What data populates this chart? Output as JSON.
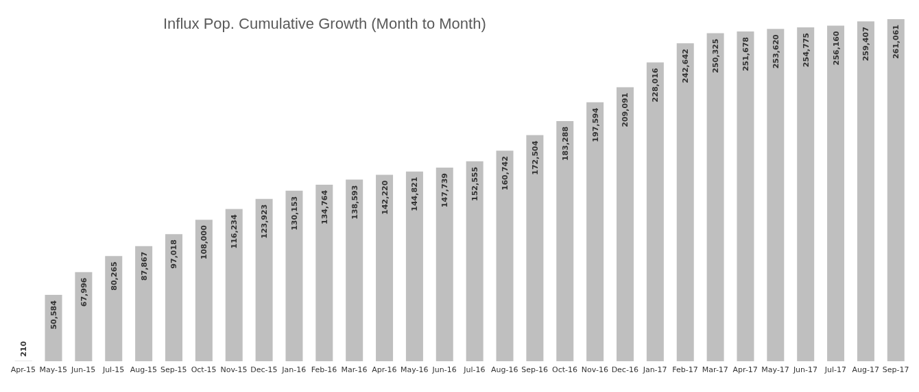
{
  "chart_data": {
    "type": "bar",
    "title": "Influx Pop. Cumulative Growth (Month to Month)",
    "categories": [
      "Apr-15",
      "May-15",
      "Jun-15",
      "Jul-15",
      "Aug-15",
      "Sep-15",
      "Oct-15",
      "Nov-15",
      "Dec-15",
      "Jan-16",
      "Feb-16",
      "Mar-16",
      "Apr-16",
      "May-16",
      "Jun-16",
      "Jul-16",
      "Aug-16",
      "Sep-16",
      "Oct-16",
      "Nov-16",
      "Dec-16",
      "Jan-17",
      "Feb-17",
      "Mar-17",
      "Apr-17",
      "May-17",
      "Jun-17",
      "Jul-17",
      "Aug-17",
      "Sep-17"
    ],
    "values": [
      210,
      50584,
      67996,
      80265,
      87867,
      97018,
      108000,
      116234,
      123923,
      130153,
      134764,
      138593,
      142220,
      144821,
      147739,
      152555,
      160742,
      172504,
      183288,
      197594,
      209091,
      228016,
      242642,
      250325,
      251678,
      253620,
      254775,
      256160,
      259407,
      261061
    ],
    "value_labels": [
      "210",
      "50,584",
      "67,996",
      "80,265",
      "87,867",
      "97,018",
      "108,000",
      "116,234",
      "123,923",
      "130,153",
      "134,764",
      "138,593",
      "142,220",
      "144,821",
      "147,739",
      "152,555",
      "160,742",
      "172,504",
      "183,288",
      "197,594",
      "209,091",
      "228,016",
      "242,642",
      "250,325",
      "251,678",
      "253,620",
      "254,775",
      "256,160",
      "259,407",
      "261,061"
    ],
    "color": "#bfbfbf"
  }
}
